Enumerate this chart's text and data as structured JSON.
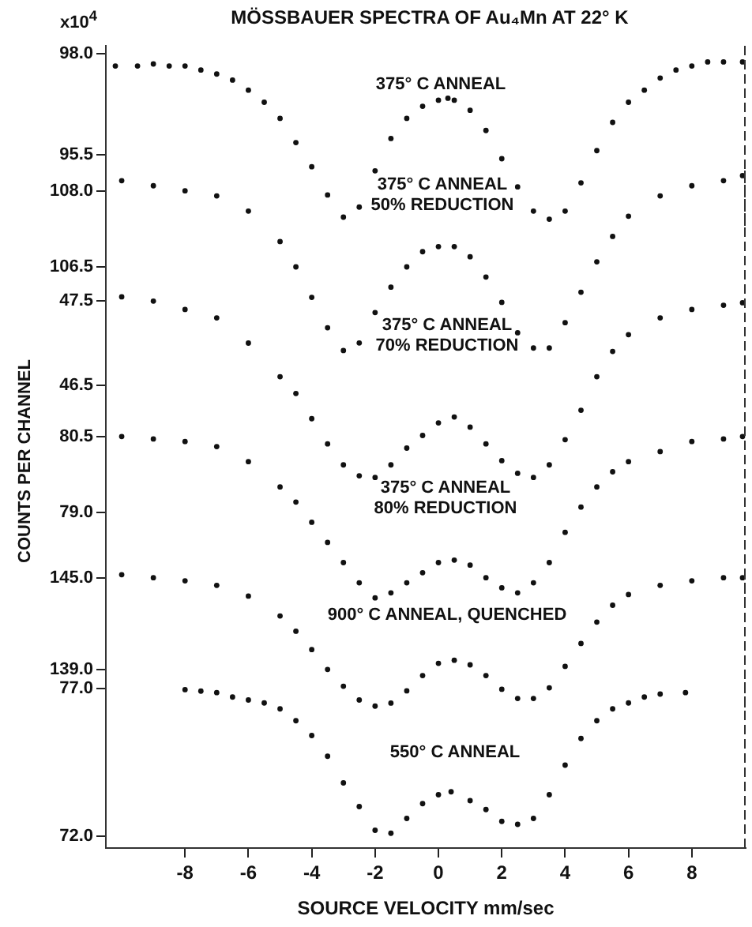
{
  "chart_data": [
    {
      "type": "scatter",
      "title": "MÖSSBAUER SPECTRA OF Au₄Mn AT 22° K",
      "annotations": [
        "x10$^{4}$",
        "375° C ANNEAL"
      ],
      "marker": "circle",
      "tick_labels": "y",
      "xlim": [
        -10.5,
        9.7
      ],
      "ylim": [
        93.5,
        98.2
      ],
      "yticks": [
        {
          "value": 98,
          "label": "98.0"
        },
        {
          "value": 95.5,
          "label": "95.5"
        }
      ],
      "x": [
        -10.2,
        -9.5,
        -9,
        -8.5,
        -8,
        -7.5,
        -7,
        -6.5,
        -6,
        -5.5,
        -5,
        -4.5,
        -4,
        -3.5,
        -3,
        -2.5,
        -2,
        -1.5,
        -1,
        -0.5,
        0,
        0.3,
        0.5,
        1,
        1.5,
        2,
        2.5,
        3,
        3.5,
        4,
        4.5,
        5,
        5.5,
        6,
        6.5,
        7,
        7.5,
        8,
        8.5,
        9,
        9.6
      ],
      "series": [
        {
          "color": "#111111",
          "values": [
            97.7,
            97.7,
            97.75,
            97.7,
            97.7,
            97.6,
            97.5,
            97.35,
            97.1,
            96.8,
            96.4,
            95.8,
            95.2,
            94.5,
            93.95,
            94.2,
            95.1,
            95.9,
            96.4,
            96.7,
            96.85,
            96.9,
            96.85,
            96.6,
            96.1,
            95.4,
            94.7,
            94.1,
            93.9,
            94.1,
            94.8,
            95.6,
            96.3,
            96.8,
            97.1,
            97.4,
            97.6,
            97.7,
            97.8,
            97.8,
            97.8
          ]
        }
      ]
    },
    {
      "type": "scatter",
      "annotations": [
        "375° C ANNEAL\n50% REDUCTION"
      ],
      "marker": "circle",
      "tick_labels": "y",
      "xlim": [
        -10.5,
        9.7
      ],
      "ylim": [
        104.6,
        108.4
      ],
      "yticks": [
        {
          "value": 108,
          "label": "108.0"
        },
        {
          "value": 106.5,
          "label": "106.5"
        }
      ],
      "x": [
        -10,
        -9,
        -8,
        -7,
        -6,
        -5,
        -4.5,
        -4,
        -3.5,
        -3,
        -2.5,
        -2,
        -1.5,
        -1,
        -0.5,
        0,
        0.5,
        1,
        1.5,
        2,
        2.5,
        3,
        3.5,
        4,
        4.5,
        5,
        5.5,
        6,
        7,
        8,
        9,
        9.6
      ],
      "series": [
        {
          "color": "#111111",
          "values": [
            108.2,
            108.1,
            108.0,
            107.9,
            107.6,
            107.0,
            106.5,
            105.9,
            105.3,
            104.85,
            105.0,
            105.6,
            106.1,
            106.5,
            106.8,
            106.9,
            106.9,
            106.7,
            106.3,
            105.8,
            105.2,
            104.9,
            104.9,
            105.4,
            106.0,
            106.6,
            107.1,
            107.5,
            107.9,
            108.1,
            108.2,
            108.3
          ]
        }
      ]
    },
    {
      "type": "scatter",
      "annotations": [
        "375° C ANNEAL\n70% REDUCTION"
      ],
      "marker": "circle",
      "tick_labels": "y",
      "xlim": [
        -10.5,
        9.7
      ],
      "ylim": [
        45.2,
        47.7
      ],
      "yticks": [
        {
          "value": 47.5,
          "label": "47.5"
        },
        {
          "value": 46.5,
          "label": "46.5"
        }
      ],
      "x": [
        -10,
        -9,
        -8,
        -7,
        -6,
        -5,
        -4.5,
        -4,
        -3.5,
        -3,
        -2.5,
        -2,
        -1.5,
        -1,
        -0.5,
        0,
        0.5,
        1,
        1.5,
        2,
        2.5,
        3,
        3.5,
        4,
        4.5,
        5,
        5.5,
        6,
        7,
        8,
        9,
        9.6
      ],
      "series": [
        {
          "color": "#111111",
          "values": [
            47.55,
            47.5,
            47.4,
            47.3,
            47.0,
            46.6,
            46.4,
            46.1,
            45.8,
            45.55,
            45.42,
            45.4,
            45.55,
            45.75,
            45.9,
            46.05,
            46.12,
            46.0,
            45.8,
            45.6,
            45.45,
            45.4,
            45.55,
            45.85,
            46.2,
            46.6,
            46.9,
            47.1,
            47.3,
            47.4,
            47.45,
            47.48
          ]
        }
      ]
    },
    {
      "type": "scatter",
      "ylabel": "COUNTS PER CHANNEL",
      "annotations": [
        "375° C ANNEAL\n80% REDUCTION"
      ],
      "marker": "circle",
      "tick_labels": "y",
      "xlim": [
        -10.5,
        9.7
      ],
      "ylim": [
        77.1,
        80.7
      ],
      "yticks": [
        {
          "value": 80.5,
          "label": "80.5"
        },
        {
          "value": 79,
          "label": "79.0"
        }
      ],
      "x": [
        -10,
        -9,
        -8,
        -7,
        -6,
        -5,
        -4.5,
        -4,
        -3.5,
        -3,
        -2.5,
        -2,
        -1.5,
        -1,
        -0.5,
        0,
        0.5,
        1,
        1.5,
        2,
        2.5,
        3,
        3.5,
        4,
        4.5,
        5,
        5.5,
        6,
        7,
        8,
        9,
        9.6
      ],
      "series": [
        {
          "color": "#111111",
          "values": [
            80.5,
            80.45,
            80.4,
            80.3,
            80.0,
            79.5,
            79.2,
            78.8,
            78.4,
            78.0,
            77.6,
            77.3,
            77.4,
            77.6,
            77.8,
            78.0,
            78.05,
            77.95,
            77.7,
            77.5,
            77.4,
            77.6,
            78.0,
            78.6,
            79.1,
            79.5,
            79.8,
            80.0,
            80.2,
            80.4,
            80.45,
            80.5
          ]
        }
      ]
    },
    {
      "type": "scatter",
      "annotations": [
        "900° C ANNEAL, QUENCHED"
      ],
      "marker": "circle",
      "tick_labels": "y",
      "xlim": [
        -10.5,
        9.7
      ],
      "ylim": [
        136.2,
        145.5
      ],
      "yticks": [
        {
          "value": 145,
          "label": "145.0"
        },
        {
          "value": 139,
          "label": "139.0"
        }
      ],
      "x": [
        -10,
        -9,
        -8,
        -7,
        -6,
        -5,
        -4.5,
        -4,
        -3.5,
        -3,
        -2.5,
        -2,
        -1.5,
        -1,
        -0.5,
        0,
        0.5,
        1,
        1.5,
        2,
        2.5,
        3,
        3.5,
        4,
        4.5,
        5,
        5.5,
        6,
        7,
        8,
        9,
        9.6
      ],
      "series": [
        {
          "color": "#111111",
          "values": [
            145.2,
            145.0,
            144.8,
            144.5,
            143.8,
            142.5,
            141.5,
            140.3,
            139.0,
            137.9,
            137.0,
            136.6,
            136.8,
            137.6,
            138.6,
            139.4,
            139.6,
            139.3,
            138.6,
            137.7,
            137.1,
            137.1,
            137.8,
            139.2,
            140.7,
            142.1,
            143.2,
            143.9,
            144.5,
            144.8,
            145.0,
            145.0
          ]
        }
      ]
    },
    {
      "type": "scatter",
      "xlabel": "SOURCE VELOCITY mm/sec",
      "annotations": [
        "550° C ANNEAL"
      ],
      "marker": "circle",
      "xlim": [
        -10.5,
        9.7
      ],
      "xticks": [
        -8,
        -6,
        -4,
        -2,
        0,
        2,
        4,
        6,
        8
      ],
      "ylim": [
        71.6,
        77.2
      ],
      "yticks": [
        {
          "value": 77,
          "label": "77.0"
        },
        {
          "value": 72,
          "label": "72.0"
        }
      ],
      "x": [
        -8,
        -7.5,
        -7,
        -6.5,
        -6,
        -5.5,
        -5,
        -4.5,
        -4,
        -3.5,
        -3,
        -2.5,
        -2,
        -1.5,
        -1,
        -0.5,
        0,
        0.4,
        1,
        1.5,
        2,
        2.5,
        3,
        3.5,
        4,
        4.5,
        5,
        5.5,
        6,
        6.5,
        7,
        7.8
      ],
      "series": [
        {
          "color": "#111111",
          "values": [
            76.95,
            76.9,
            76.85,
            76.7,
            76.6,
            76.5,
            76.3,
            75.9,
            75.4,
            74.7,
            73.8,
            73.0,
            72.2,
            72.1,
            72.6,
            73.1,
            73.4,
            73.5,
            73.2,
            72.9,
            72.5,
            72.4,
            72.6,
            73.4,
            74.4,
            75.3,
            75.9,
            76.3,
            76.5,
            76.7,
            76.8,
            76.85
          ]
        }
      ]
    }
  ]
}
